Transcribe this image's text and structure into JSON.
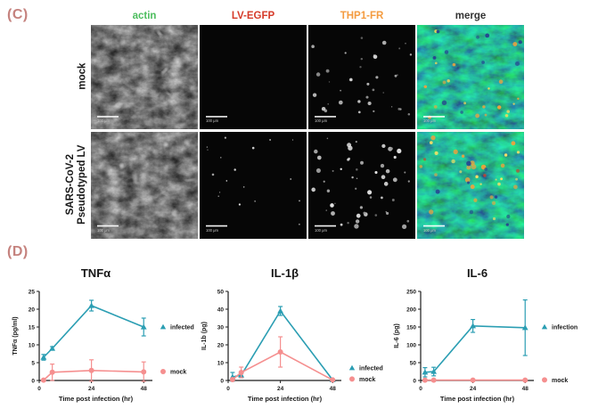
{
  "colors": {
    "panel_label": "#c5827e",
    "infected_series": "#2b9eb3",
    "mock_series": "#f58f8f",
    "axis": "#1a1a1a"
  },
  "panel_c": {
    "label": "(C)",
    "scale_bar_label": "100 μm",
    "col_headers": [
      {
        "label": "actin",
        "color": "#4cbd5e"
      },
      {
        "label": "LV-EGFP",
        "color": "#d63b2a"
      },
      {
        "label": "THP1-FR",
        "color": "#f49b3f"
      },
      {
        "label": "merge",
        "color": "#323232"
      }
    ],
    "rows": [
      {
        "label": "mock",
        "channels": [
          {
            "channel": "actin",
            "appearance": "gray-fibrous-texture"
          },
          {
            "channel": "lv-egfp",
            "appearance": "black"
          },
          {
            "channel": "thp1-fr",
            "appearance": "sparse-white-cells"
          },
          {
            "channel": "merge",
            "appearance": "green-tissue-orange-cells"
          }
        ]
      },
      {
        "label": "SARS-CoV-2\nPseudotyped LV",
        "channels": [
          {
            "channel": "actin",
            "appearance": "gray-fibrous-texture"
          },
          {
            "channel": "lv-egfp",
            "appearance": "sparse-white-specks"
          },
          {
            "channel": "thp1-fr",
            "appearance": "many-white-cells"
          },
          {
            "channel": "merge",
            "appearance": "green-tissue-many-orange-cells"
          }
        ]
      }
    ]
  },
  "panel_d": {
    "label": "(D)"
  },
  "chart_data": [
    {
      "type": "line",
      "title": "TNFα",
      "xlabel": "Time post infection (hr)",
      "ylabel": "TNFα (pg/ml)",
      "xlim": [
        0,
        52
      ],
      "ylim": [
        0,
        25
      ],
      "xticks": [
        0,
        24,
        48
      ],
      "yticks": [
        0,
        5,
        10,
        15,
        20,
        25
      ],
      "x": [
        2,
        6,
        24,
        48
      ],
      "grid": false,
      "legend_position": "right",
      "series": [
        {
          "name": "infected",
          "marker": "triangle",
          "color": "#2b9eb3",
          "values": [
            6.5,
            9,
            21,
            15
          ],
          "err": [
            0.8,
            0.5,
            1.5,
            2.5
          ],
          "legend_y": 15
        },
        {
          "name": "mock",
          "marker": "circle",
          "color": "#f58f8f",
          "values": [
            0.1,
            2.3,
            2.8,
            2.4
          ],
          "err": [
            0.3,
            2.3,
            3.0,
            2.8
          ],
          "legend_y": 2.5
        }
      ]
    },
    {
      "type": "line",
      "title": "IL-1β",
      "xlabel": "Time post infection (hr)",
      "ylabel": "IL-1b (pg)",
      "xlim": [
        0,
        52
      ],
      "ylim": [
        0,
        50
      ],
      "xticks": [
        0,
        24,
        48
      ],
      "yticks": [
        0,
        10,
        20,
        30,
        40,
        50
      ],
      "x": [
        2,
        6,
        24,
        48
      ],
      "grid": false,
      "legend_position": "right",
      "series": [
        {
          "name": "infected",
          "marker": "triangle",
          "color": "#2b9eb3",
          "values": [
            2,
            3,
            39,
            0.3
          ],
          "err": [
            2.5,
            1,
            2.5,
            0.2
          ],
          "legend_y": 7
        },
        {
          "name": "mock",
          "marker": "circle",
          "color": "#f58f8f",
          "values": [
            0.5,
            4.5,
            16,
            0.3
          ],
          "err": [
            0.5,
            3,
            8.5,
            0.2
          ],
          "legend_y": 0.8
        }
      ]
    },
    {
      "type": "line",
      "title": "IL-6",
      "xlabel": "Time post infection (hr)",
      "ylabel": "IL-6 (pg)",
      "xlim": [
        0,
        52
      ],
      "ylim": [
        0,
        250
      ],
      "xticks": [
        0,
        24,
        48
      ],
      "yticks": [
        0,
        50,
        100,
        150,
        200,
        250
      ],
      "x": [
        2,
        6,
        24,
        48
      ],
      "grid": false,
      "legend_position": "right",
      "series": [
        {
          "name": "infection",
          "marker": "triangle",
          "color": "#2b9eb3",
          "values": [
            23,
            25,
            153,
            148
          ],
          "err": [
            13,
            12,
            18,
            78
          ],
          "legend_y": 150
        },
        {
          "name": "mock",
          "marker": "circle",
          "color": "#f58f8f",
          "values": [
            1,
            1,
            1,
            1
          ],
          "err": [
            0,
            0,
            0,
            0
          ],
          "legend_y": 1.5
        }
      ]
    }
  ]
}
